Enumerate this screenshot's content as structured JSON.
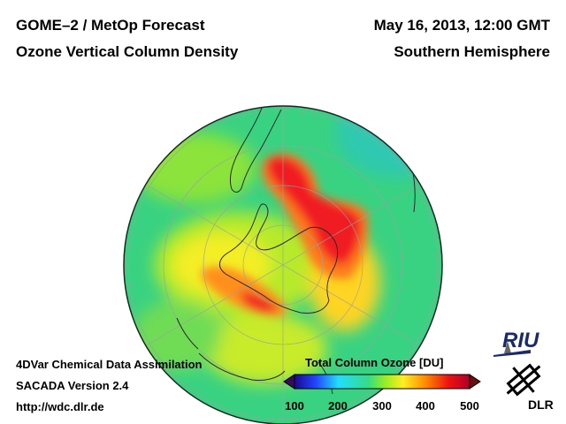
{
  "header": {
    "title_left": "GOME–2 / MetOp Forecast",
    "subtitle_left": "Ozone Vertical Column Density",
    "date_right": "May 16, 2013, 12:00 GMT",
    "region_right": "Southern Hemisphere"
  },
  "footer": {
    "method": "4DVar Chemical Data Assimilation",
    "version": "SACADA Version 2.4",
    "url": "http://wdc.dlr.de"
  },
  "colorbar": {
    "title": "Total Column Ozone [DU]",
    "ticks": [
      "100",
      "200",
      "300",
      "400",
      "500"
    ],
    "range": [
      100,
      500
    ],
    "colors": [
      "#1a0a8c",
      "#2244ff",
      "#22ddff",
      "#33dd88",
      "#99ee22",
      "#ffee22",
      "#ff8800",
      "#ee1111",
      "#b0002a"
    ]
  },
  "logos": {
    "riu": "RIU",
    "dlr": "DLR"
  },
  "map": {
    "projection": "orthographic-south-pole",
    "background_color": "#39d282"
  }
}
